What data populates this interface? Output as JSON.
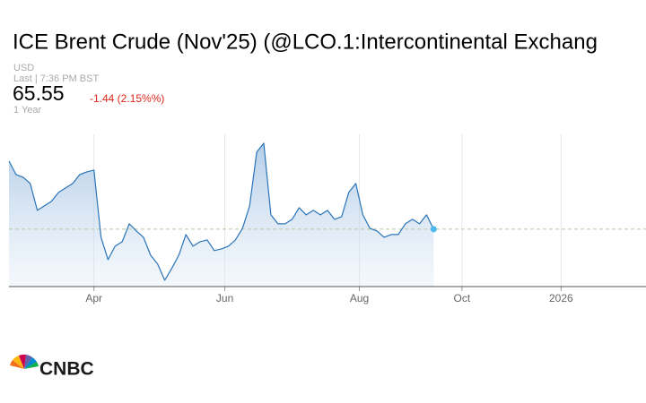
{
  "chart_data": {
    "type": "area",
    "title": "ICE Brent Crude (Nov'25) (@LCO.1:Intercontinental Exchang",
    "currency": "USD",
    "last_label": "Last | 7:36 PM BST",
    "last_price": 65.55,
    "change": "-1.44 (2.15%%)",
    "range": "1 Year",
    "logo": "CNBC",
    "color": "#2a74b8",
    "x": [
      0,
      2,
      4,
      6,
      8,
      10,
      12,
      14,
      16,
      18,
      20,
      22,
      24,
      26,
      28,
      30,
      32,
      34,
      36,
      38,
      40,
      42,
      44,
      46,
      48,
      50,
      52,
      54,
      56,
      58,
      60,
      62,
      64,
      66,
      68,
      70,
      72,
      74,
      76,
      78,
      80,
      82,
      84,
      86,
      88,
      90,
      92,
      94,
      96,
      98,
      100,
      102,
      104,
      106,
      108,
      110,
      112,
      114,
      116,
      118,
      120
    ],
    "values": [
      75.92,
      73.87,
      73.46,
      72.51,
      68.41,
      69.1,
      69.78,
      71.14,
      71.83,
      72.51,
      73.87,
      74.28,
      74.55,
      64.32,
      60.91,
      62.96,
      63.64,
      66.37,
      65.28,
      64.32,
      61.59,
      60.23,
      57.77,
      59.55,
      61.59,
      64.73,
      62.96,
      63.64,
      63.91,
      62.28,
      62.55,
      62.96,
      63.91,
      65.69,
      69.1,
      77.28,
      78.65,
      67.73,
      66.37,
      66.37,
      67.05,
      68.82,
      67.73,
      68.41,
      67.73,
      68.41,
      67.05,
      67.46,
      71.14,
      72.51,
      67.73,
      65.69,
      65.28,
      64.32,
      64.73,
      64.73,
      66.37,
      67.05,
      66.37,
      67.73,
      65.55
    ],
    "xlim": [
      0,
      180
    ],
    "xticks": [
      {
        "value": 24,
        "label": "Apr"
      },
      {
        "value": 61,
        "label": "Jun"
      },
      {
        "value": 99,
        "label": "Aug"
      },
      {
        "value": 128,
        "label": "Oct"
      },
      {
        "value": 156,
        "label": "2026"
      }
    ],
    "ylim": [
      56.8,
      80
    ]
  }
}
